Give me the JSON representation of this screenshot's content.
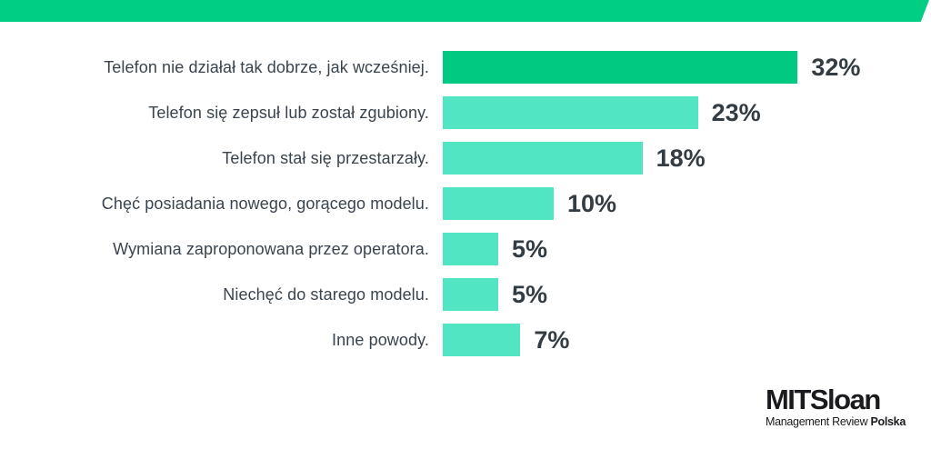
{
  "banner": {
    "color": "#00ce85"
  },
  "chart_data": {
    "type": "bar",
    "orientation": "horizontal",
    "title": "",
    "xlabel": "",
    "ylabel": "",
    "categories": [
      "Telefon nie działał tak dobrze, jak wcześniej.",
      "Telefon się zepsuł lub został zgubiony.",
      "Telefon stał się przestarzały.",
      "Chęć posiadania nowego, gorącego modelu.",
      "Wymiana zaproponowana przez operatora.",
      "Niechęć do starego modelu.",
      "Inne powody."
    ],
    "values": [
      32,
      23,
      18,
      10,
      5,
      5,
      7
    ],
    "value_labels": [
      "32%",
      "23%",
      "18%",
      "10%",
      "5%",
      "5%",
      "7%"
    ],
    "unit": "%",
    "xlim": [
      0,
      32
    ],
    "grid": false,
    "legend": null,
    "colors": {
      "first_bar": "#00c981",
      "other_bars": "#52e5c3",
      "label_text": "#3a444e",
      "value_text": "#333b43"
    }
  },
  "logo": {
    "title": "MITSloan",
    "subtitle_regular": "Management Review ",
    "subtitle_bold": "Polska"
  }
}
